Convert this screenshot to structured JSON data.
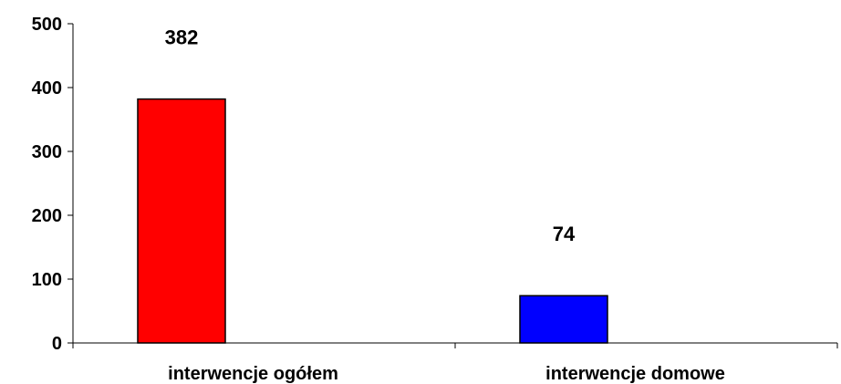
{
  "chart_data": {
    "type": "bar",
    "categories": [
      "interwencje ogółem",
      "interwencje domowe"
    ],
    "values": [
      382,
      74
    ],
    "data_labels": [
      "382",
      "74"
    ],
    "colors": [
      "#ff0000",
      "#0000ff"
    ],
    "title": "",
    "xlabel": "",
    "ylabel": "",
    "ylim": [
      0,
      500
    ],
    "yticks": [
      "0",
      "100",
      "200",
      "300",
      "400",
      "500"
    ],
    "grid": false,
    "legend": "none"
  }
}
